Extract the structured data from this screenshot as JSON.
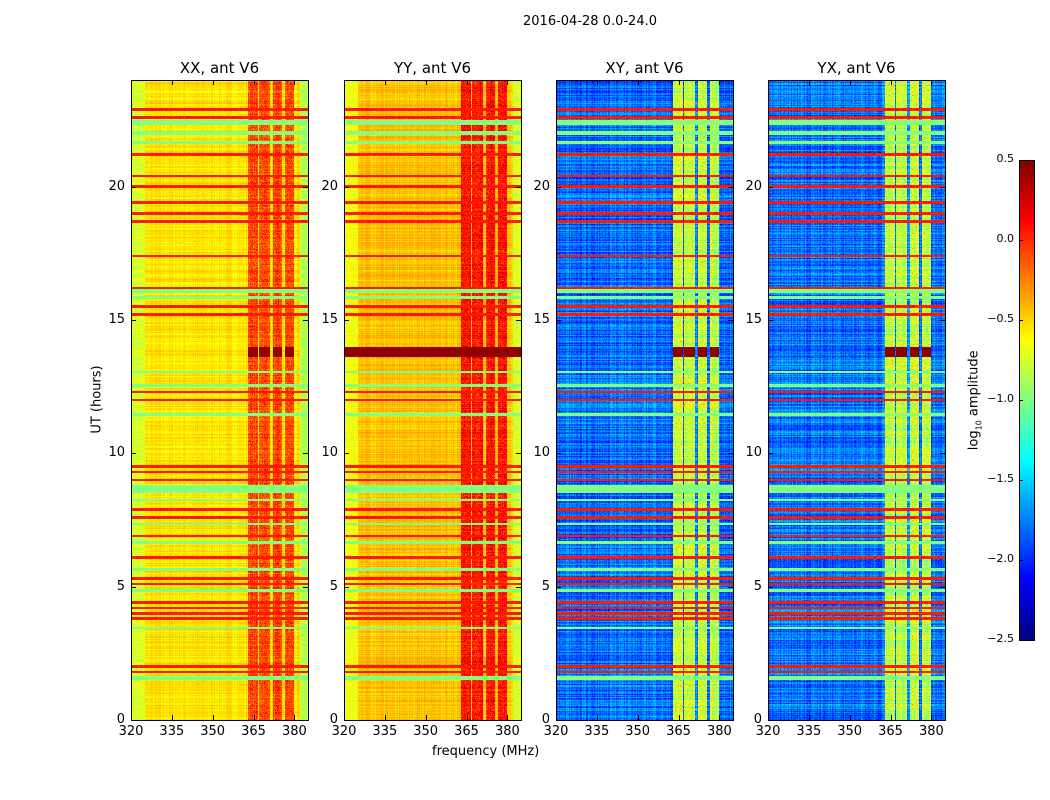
{
  "chart_data": {
    "type": "heatmap",
    "title": "2016-04-28 0.0-24.0",
    "xlabel": "frequency (MHz)",
    "ylabel": "UT (hours)",
    "xlim": [
      320,
      385
    ],
    "ylim": [
      0,
      24
    ],
    "xticks": [
      320,
      335,
      350,
      365,
      380
    ],
    "yticks": [
      0,
      5,
      10,
      15,
      20
    ],
    "panels": [
      {
        "title": "XX, ant V6",
        "base": -0.55,
        "band_boost": 0.4
      },
      {
        "title": "YY, ant V6",
        "base": -0.45,
        "band_boost": 0.45
      },
      {
        "title": "XY, ant V6",
        "base": -1.8,
        "band_boost": 0.95
      },
      {
        "title": "YX, ant V6",
        "base": -1.8,
        "band_boost": 0.95
      }
    ],
    "rfi_bands_mhz": [
      [
        363,
        366.5
      ],
      [
        367,
        371
      ],
      [
        372,
        375.5
      ],
      [
        376.5,
        380
      ]
    ],
    "red_rows_hours": [
      22.9,
      22.6,
      21.2,
      20.4,
      20.0,
      19.4,
      19.0,
      18.7,
      17.4,
      16.2,
      15.5,
      15.2,
      12.3,
      12.0,
      9.5,
      9.3,
      9.0,
      7.9,
      7.6,
      6.9,
      6.1,
      5.3,
      5.1,
      4.4,
      4.2,
      4.0,
      3.8,
      2.0,
      1.8
    ],
    "flagged_rows_hours": [
      [
        22.3,
        22.5
      ],
      [
        21.95,
        22.1
      ],
      [
        21.6,
        21.7
      ],
      [
        16.0,
        16.2
      ],
      [
        15.8,
        15.9
      ],
      [
        13.0,
        13.1
      ],
      [
        12.5,
        12.6
      ],
      [
        11.4,
        11.5
      ],
      [
        8.5,
        8.8
      ],
      [
        8.2,
        8.3
      ],
      [
        7.3,
        7.4
      ],
      [
        6.6,
        6.7
      ],
      [
        5.6,
        5.7
      ],
      [
        4.8,
        4.9
      ],
      [
        3.4,
        3.5
      ],
      [
        1.5,
        1.65
      ]
    ],
    "burst_hours": [
      13.6,
      14.0
    ],
    "colorbar": {
      "label": "log10 amplitude",
      "label_main": "log",
      "label_sub": "10",
      "label_rest": " amplitude",
      "range": [
        -2.5,
        0.5
      ],
      "ticks": [
        "0.5",
        "0.0",
        "−0.5",
        "−1.0",
        "−1.5",
        "−2.0",
        "−2.5"
      ],
      "tick_values": [
        0.5,
        0,
        -0.5,
        -1,
        -1.5,
        -2,
        -2.5
      ]
    }
  }
}
